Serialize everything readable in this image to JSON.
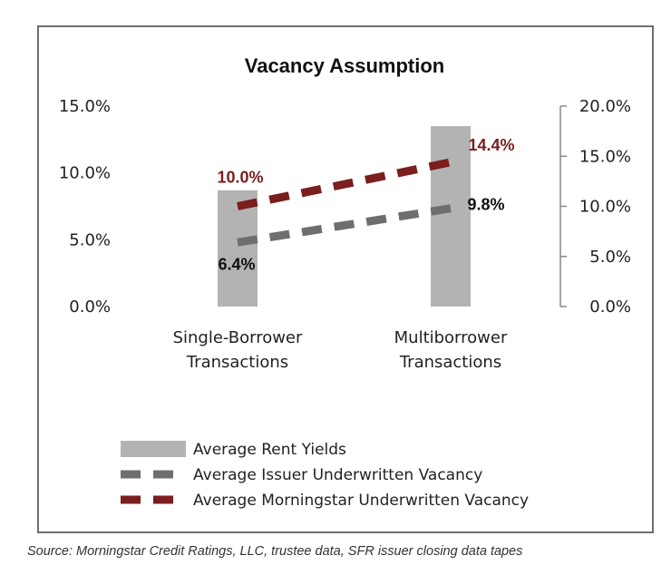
{
  "chart_data": {
    "type": "bar",
    "title": "Vacancy Assumption",
    "categories": [
      "Single-Borrower Transactions",
      "Multiborrower Transactions"
    ],
    "category_lines": [
      [
        "Single-Borrower",
        "Transactions"
      ],
      [
        "Multiborrower",
        "Transactions"
      ]
    ],
    "left_axis": {
      "ylim": [
        0,
        15
      ],
      "ticks": [
        "15.0%",
        "10.0%",
        "5.0%",
        "0.0%"
      ],
      "tick_values": [
        15,
        10,
        5,
        0
      ]
    },
    "right_axis": {
      "ylim": [
        0,
        20
      ],
      "ticks": [
        "20.0%",
        "15.0%",
        "10.0%",
        "5.0%",
        "0.0%"
      ],
      "tick_values": [
        20,
        15,
        10,
        5,
        0
      ]
    },
    "series": [
      {
        "name": "Average Rent Yields",
        "kind": "bar",
        "axis": "left",
        "values": [
          8.7,
          13.5
        ],
        "color": "#b3b3b3"
      },
      {
        "name": "Average Issuer Underwritten Vacancy",
        "kind": "line",
        "axis": "right",
        "values": [
          6.4,
          9.8
        ],
        "labels": [
          "6.4%",
          "9.8%"
        ],
        "color": "#6e6e6e",
        "label_color": "#111111"
      },
      {
        "name": "Average Morningstar Underwritten Vacancy",
        "kind": "line",
        "axis": "right",
        "values": [
          10.0,
          14.4
        ],
        "labels": [
          "10.0%",
          "14.4%"
        ],
        "color": "#7a1e1e",
        "label_color": "#7a1e1e"
      }
    ],
    "legend_position": "bottom-left",
    "grid": false
  },
  "source": "Source: Morningstar Credit Ratings, LLC, trustee data, SFR issuer closing data tapes"
}
